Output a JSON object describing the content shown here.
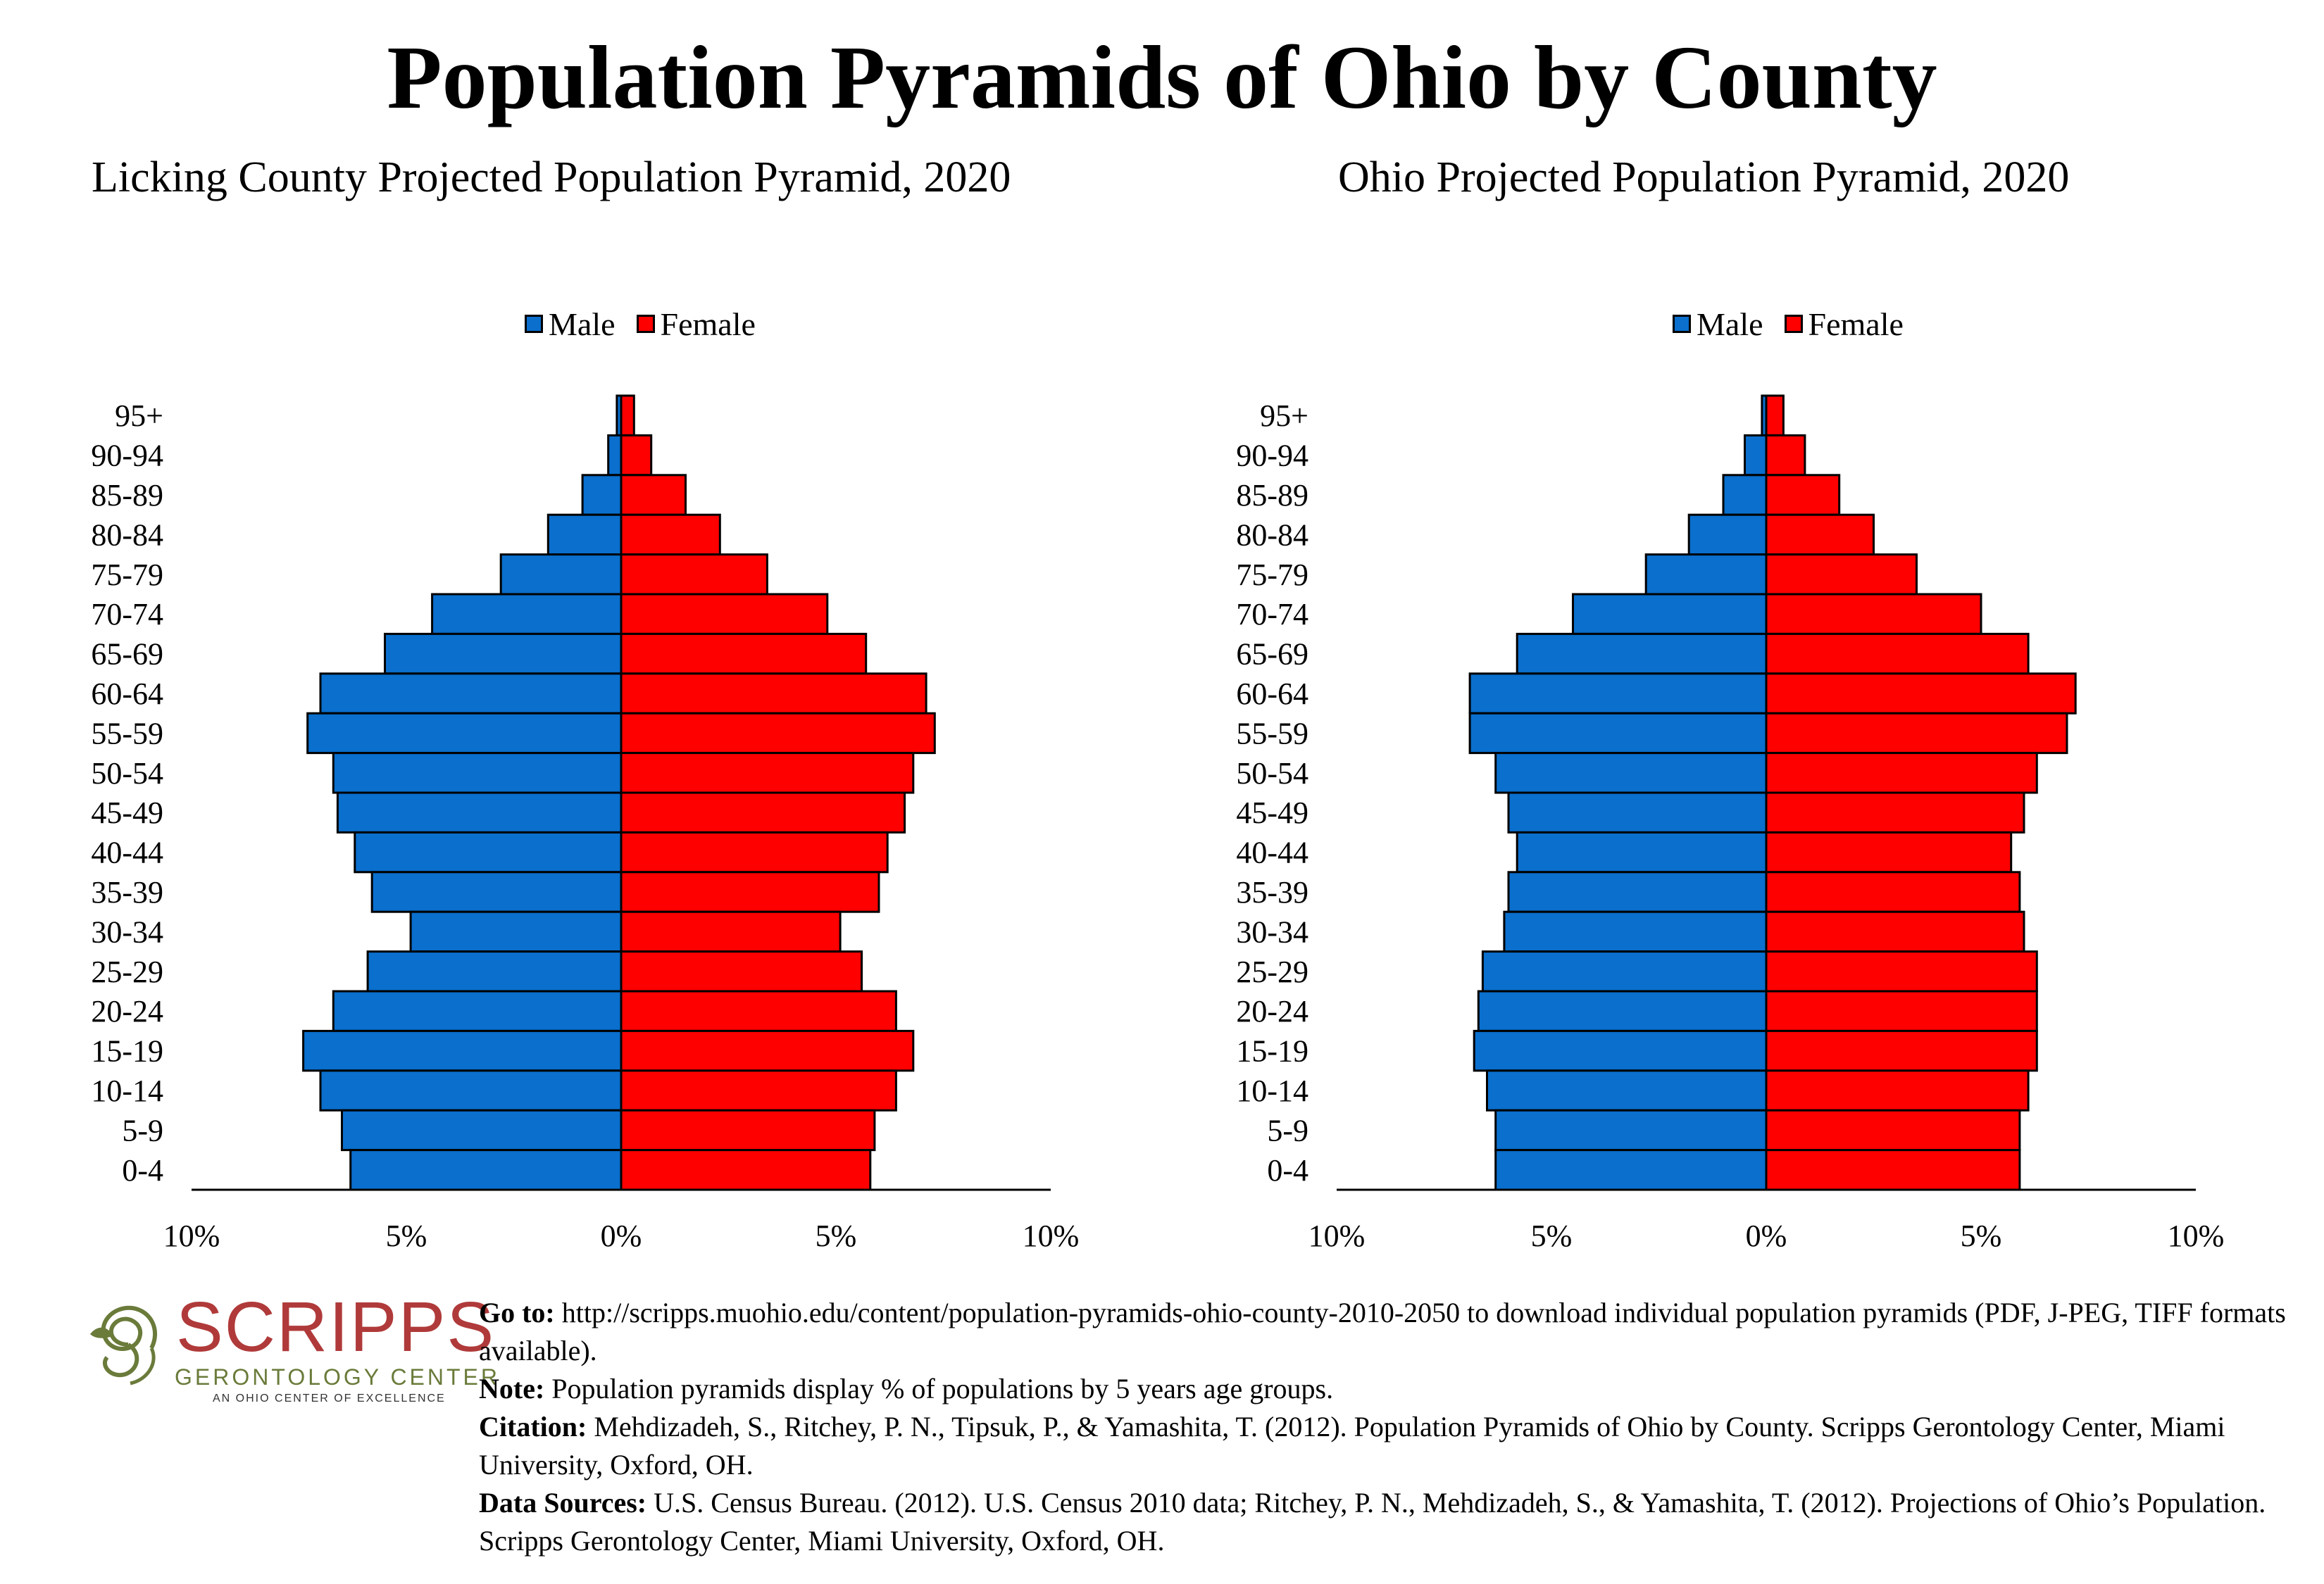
{
  "title": "Population Pyramids of Ohio by County",
  "colors": {
    "male": "#0a6fcd",
    "female": "#ff0000",
    "outline": "#000000"
  },
  "legend": {
    "male": "Male",
    "female": "Female"
  },
  "chart_data": [
    {
      "type": "bar",
      "orientation": "horizontal-pyramid",
      "title": "Licking County Projected Population Pyramid, 2020",
      "categories": [
        "95+",
        "90-94",
        "85-89",
        "80-84",
        "75-79",
        "70-74",
        "65-69",
        "60-64",
        "55-59",
        "50-54",
        "45-49",
        "40-44",
        "35-39",
        "30-34",
        "25-29",
        "20-24",
        "15-19",
        "10-14",
        "5-9",
        "0-4"
      ],
      "series": [
        {
          "name": "Male",
          "values": [
            0.1,
            0.3,
            0.9,
            1.7,
            2.8,
            4.4,
            5.5,
            7.0,
            7.3,
            6.7,
            6.6,
            6.2,
            5.8,
            4.9,
            5.9,
            6.7,
            7.4,
            7.0,
            6.5,
            6.3
          ]
        },
        {
          "name": "Female",
          "values": [
            0.3,
            0.7,
            1.5,
            2.3,
            3.4,
            4.8,
            5.7,
            7.1,
            7.3,
            6.8,
            6.6,
            6.2,
            6.0,
            5.1,
            5.6,
            6.4,
            6.8,
            6.4,
            5.9,
            5.8
          ]
        }
      ],
      "xlim": [
        -10,
        10
      ],
      "xticks": [
        "10%",
        "5%",
        "0%",
        "5%",
        "10%"
      ],
      "legend_position": "top-center",
      "grid": false
    },
    {
      "type": "bar",
      "orientation": "horizontal-pyramid",
      "title": "Ohio Projected Population Pyramid, 2020",
      "categories": [
        "95+",
        "90-94",
        "85-89",
        "80-84",
        "75-79",
        "70-74",
        "65-69",
        "60-64",
        "55-59",
        "50-54",
        "45-49",
        "40-44",
        "35-39",
        "30-34",
        "25-29",
        "20-24",
        "15-19",
        "10-14",
        "5-9",
        "0-4"
      ],
      "series": [
        {
          "name": "Male",
          "values": [
            0.1,
            0.5,
            1.0,
            1.8,
            2.8,
            4.5,
            5.8,
            6.9,
            6.9,
            6.3,
            6.0,
            5.8,
            6.0,
            6.1,
            6.6,
            6.7,
            6.8,
            6.5,
            6.3,
            6.3
          ]
        },
        {
          "name": "Female",
          "values": [
            0.4,
            0.9,
            1.7,
            2.5,
            3.5,
            5.0,
            6.1,
            7.2,
            7.0,
            6.3,
            6.0,
            5.7,
            5.9,
            6.0,
            6.3,
            6.3,
            6.3,
            6.1,
            5.9,
            5.9
          ]
        }
      ],
      "xlim": [
        -10,
        10
      ],
      "xticks": [
        "10%",
        "5%",
        "0%",
        "5%",
        "10%"
      ],
      "legend_position": "top-center",
      "grid": false
    }
  ],
  "logo": {
    "name": "SCRIPPS",
    "subtitle": "GERONTOLOGY CENTER",
    "tagline": "AN OHIO CENTER OF EXCELLENCE",
    "icon": "spiral-leaf-icon"
  },
  "notes": {
    "goto_label": "Go to:",
    "goto_text": " http://scripps.muohio.edu/content/population-pyramids-ohio-county-2010-2050 to download individual population pyramids (PDF, J-PEG, TIFF formats available).",
    "note_label": "Note:",
    "note_text": " Population pyramids display % of populations by 5 years age groups.",
    "citation_label": "Citation:",
    "citation_text": " Mehdizadeh, S., Ritchey, P. N., Tipsuk, P., & Yamashita, T. (2012). Population Pyramids of Ohio by County. Scripps Gerontology Center, Miami University, Oxford, OH.",
    "sources_label": "Data Sources:",
    "sources_text": " U.S. Census Bureau. (2012). U.S. Census 2010 data; Ritchey, P. N., Mehdizadeh, S., & Yamashita, T. (2012). Projections of Ohio’s Population. Scripps Gerontology Center, Miami University, Oxford, OH."
  }
}
